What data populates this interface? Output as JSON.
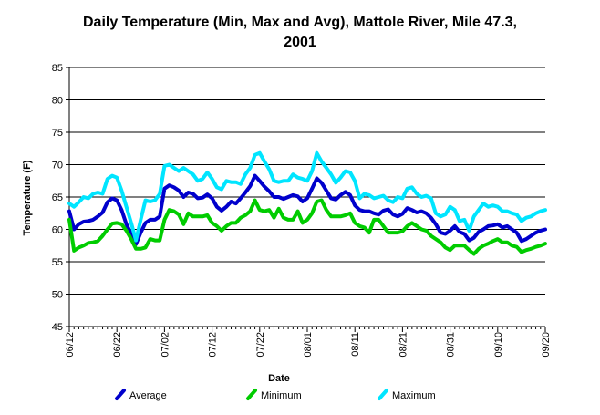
{
  "chart_data": {
    "type": "line",
    "title_line1": "Daily Temperature (Min, Max and Avg), Mattole River, Mile 47.3,",
    "title_line2": "2001",
    "xlabel": "Date",
    "ylabel": "Temperature (F)",
    "ylim": [
      45,
      85
    ],
    "yticks": [
      "45",
      "50",
      "55",
      "60",
      "65",
      "70",
      "75",
      "80",
      "85"
    ],
    "xticks": [
      "06/12",
      "06/22",
      "07/02",
      "07/12",
      "07/22",
      "08/01",
      "08/11",
      "08/21",
      "08/31",
      "09/10",
      "09/20"
    ],
    "grid": "horizontal",
    "legend_position": "bottom",
    "x": [
      "06/12",
      "06/13",
      "06/14",
      "06/15",
      "06/16",
      "06/17",
      "06/18",
      "06/19",
      "06/20",
      "06/21",
      "06/22",
      "06/23",
      "06/24",
      "06/25",
      "06/26",
      "06/27",
      "06/28",
      "06/29",
      "06/30",
      "07/01",
      "07/02",
      "07/03",
      "07/04",
      "07/05",
      "07/06",
      "07/07",
      "07/08",
      "07/09",
      "07/10",
      "07/11",
      "07/12",
      "07/13",
      "07/14",
      "07/15",
      "07/16",
      "07/17",
      "07/18",
      "07/19",
      "07/20",
      "07/21",
      "07/22",
      "07/23",
      "07/24",
      "07/25",
      "07/26",
      "07/27",
      "07/28",
      "07/29",
      "07/30",
      "07/31",
      "08/01",
      "08/02",
      "08/03",
      "08/04",
      "08/05",
      "08/06",
      "08/07",
      "08/08",
      "08/09",
      "08/10",
      "08/11",
      "08/12",
      "08/13",
      "08/14",
      "08/15",
      "08/16",
      "08/17",
      "08/18",
      "08/19",
      "08/20",
      "08/21",
      "08/22",
      "08/23",
      "08/24",
      "08/25",
      "08/26",
      "08/27",
      "08/28",
      "08/29",
      "08/30",
      "08/31",
      "09/01",
      "09/02",
      "09/03",
      "09/04",
      "09/05",
      "09/06",
      "09/07",
      "09/08",
      "09/09",
      "09/10",
      "09/11",
      "09/12",
      "09/13",
      "09/14",
      "09/15",
      "09/16",
      "09/17",
      "09/18",
      "09/19",
      "09/20"
    ],
    "series": [
      {
        "name": "Average",
        "color": "#0000cc",
        "values": [
          62.8,
          60.0,
          60.8,
          61.2,
          61.3,
          61.5,
          62.0,
          62.6,
          64.2,
          64.8,
          64.5,
          63.0,
          60.8,
          59.3,
          57.7,
          59.5,
          61.0,
          61.5,
          61.5,
          62.0,
          66.3,
          66.8,
          66.5,
          66.0,
          65.0,
          65.7,
          65.5,
          64.8,
          64.9,
          65.4,
          64.8,
          63.5,
          62.9,
          63.5,
          64.3,
          64.0,
          64.8,
          65.7,
          66.7,
          68.3,
          67.5,
          66.6,
          65.9,
          65.0,
          65.0,
          64.7,
          65.0,
          65.3,
          65.1,
          64.3,
          64.8,
          66.3,
          67.9,
          67.2,
          66.0,
          64.8,
          64.6,
          65.3,
          65.8,
          65.3,
          63.7,
          63.0,
          62.8,
          62.8,
          62.5,
          62.3,
          62.9,
          63.1,
          62.3,
          62.0,
          62.4,
          63.3,
          63.0,
          62.6,
          62.8,
          62.5,
          61.8,
          60.8,
          59.5,
          59.3,
          59.8,
          60.5,
          59.6,
          59.3,
          58.3,
          58.7,
          59.6,
          60.0,
          60.5,
          60.6,
          60.8,
          60.3,
          60.5,
          60.0,
          59.5,
          58.2,
          58.5,
          59.0,
          59.5,
          59.8,
          60.0
        ]
      },
      {
        "name": "Minimum",
        "color": "#00cc00",
        "values": [
          61.5,
          56.7,
          57.2,
          57.5,
          57.9,
          58.0,
          58.2,
          59.0,
          60.0,
          60.9,
          61.0,
          60.8,
          59.8,
          58.5,
          57.0,
          57.0,
          57.2,
          58.5,
          58.3,
          58.3,
          61.5,
          63.0,
          62.8,
          62.3,
          60.8,
          62.5,
          62.0,
          62.0,
          62.0,
          62.2,
          61.0,
          60.5,
          59.8,
          60.5,
          61.0,
          61.0,
          61.8,
          62.2,
          62.8,
          64.5,
          63.0,
          62.8,
          63.0,
          61.8,
          63.2,
          61.8,
          61.5,
          61.5,
          62.8,
          61.0,
          61.5,
          62.5,
          64.3,
          64.5,
          63.0,
          62.0,
          62.0,
          62.0,
          62.2,
          62.5,
          61.0,
          60.5,
          60.3,
          59.5,
          61.5,
          61.5,
          60.5,
          59.5,
          59.5,
          59.5,
          59.7,
          60.5,
          61.0,
          60.5,
          60.0,
          59.8,
          59.0,
          58.5,
          58.0,
          57.2,
          56.8,
          57.5,
          57.5,
          57.5,
          56.8,
          56.2,
          57.0,
          57.5,
          57.8,
          58.2,
          58.5,
          58.0,
          58.0,
          57.5,
          57.3,
          56.5,
          56.8,
          57.0,
          57.3,
          57.5,
          57.8
        ]
      },
      {
        "name": "Maximum",
        "color": "#00e5ff",
        "values": [
          64.0,
          63.5,
          64.2,
          65.0,
          64.8,
          65.5,
          65.7,
          65.5,
          67.8,
          68.3,
          68.0,
          66.0,
          63.5,
          61.0,
          58.3,
          61.5,
          64.5,
          64.3,
          64.5,
          65.5,
          69.8,
          70.0,
          69.5,
          69.0,
          69.5,
          69.0,
          68.5,
          67.5,
          67.8,
          68.8,
          67.8,
          66.5,
          66.2,
          67.5,
          67.3,
          67.3,
          67.0,
          68.5,
          69.5,
          71.5,
          71.8,
          70.5,
          69.3,
          67.5,
          67.3,
          67.5,
          67.5,
          68.5,
          68.0,
          67.8,
          67.5,
          69.0,
          71.8,
          70.5,
          69.5,
          68.5,
          67.2,
          68.0,
          69.0,
          68.8,
          67.5,
          64.8,
          65.5,
          65.3,
          64.8,
          65.0,
          65.2,
          64.5,
          64.2,
          65.0,
          64.8,
          66.3,
          66.5,
          65.5,
          65.0,
          65.2,
          64.8,
          62.5,
          62.0,
          62.3,
          63.5,
          63.0,
          61.3,
          61.5,
          59.8,
          62.0,
          63.0,
          64.0,
          63.5,
          63.7,
          63.5,
          62.8,
          62.8,
          62.5,
          62.3,
          61.3,
          61.8,
          62.0,
          62.5,
          62.8,
          63.0
        ]
      }
    ]
  }
}
